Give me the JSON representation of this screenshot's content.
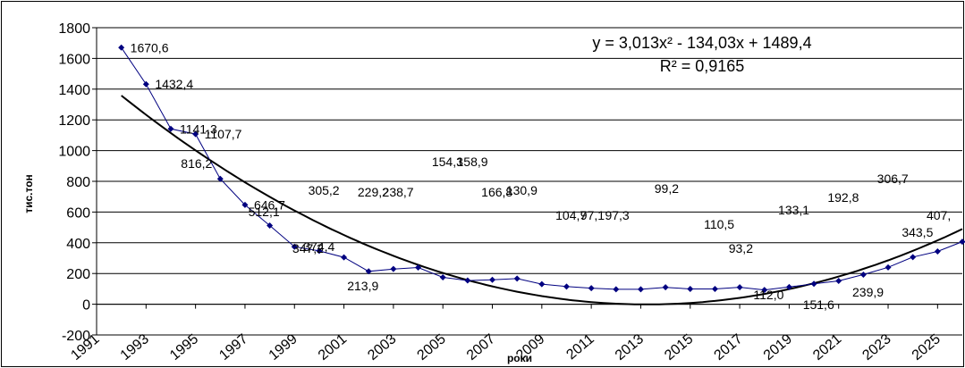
{
  "chart_data": {
    "type": "line",
    "xlabel": "роки",
    "ylabel": "тис.тон",
    "ylim": [
      -200,
      1800
    ],
    "yticks": [
      "-200",
      "0",
      "200",
      "400",
      "600",
      "800",
      "1000",
      "1200",
      "1400",
      "1600",
      "1800"
    ],
    "xlim": [
      1991,
      2026
    ],
    "xticks": [
      "1991",
      "1993",
      "1995",
      "1997",
      "1999",
      "2001",
      "2003",
      "2005",
      "2007",
      "2009",
      "2011",
      "2013",
      "2015",
      "2017",
      "2019",
      "2021",
      "2023",
      "2025"
    ],
    "grid": true,
    "legend": "none",
    "series": [
      {
        "color": "#000080",
        "x": [
          1992,
          1993,
          1994,
          1995,
          1996,
          1997,
          1998,
          1999,
          2000,
          2001,
          2002,
          2003,
          2004,
          2005,
          2006,
          2007,
          2008,
          2009,
          2010,
          2011,
          2012,
          2013,
          2014,
          2015,
          2016,
          2017,
          2018,
          2019,
          2020,
          2021,
          2022,
          2023,
          2024,
          2025,
          2026
        ],
        "values": [
          1670.6,
          1432.4,
          1141.3,
          1107.7,
          816.2,
          646.7,
          512.1,
          374.4,
          347.2,
          305.2,
          213.9,
          229.2,
          238.7,
          175.0,
          154.3,
          158.9,
          166.8,
          130.9,
          115.0,
          104.7,
          97.1,
          97.3,
          110.0,
          99.2,
          99.2,
          110.5,
          93.2,
          112.0,
          133.1,
          151.6,
          192.8,
          239.9,
          306.7,
          343.5,
          407.0
        ],
        "labels": [
          "1670,6",
          "1432,4",
          "1141,3",
          "1107,7",
          "816,2",
          "646,7",
          "512,1",
          "374,4",
          "347,2",
          "305,2",
          "213,9",
          "229,2",
          "238,7",
          "",
          "154,3",
          "158,9",
          "166,8",
          "130,9",
          "",
          "104,7",
          "97,1",
          "97,3",
          "",
          "99,2",
          "",
          "110,5",
          "93,2",
          "112,0",
          "133,1",
          "151,6",
          "192,8",
          "239,9",
          "306,7",
          "343,5",
          "407,"
        ]
      }
    ],
    "trendline": {
      "type": "polynomial",
      "coefficients": [
        3.013,
        -134.03,
        1489.4
      ],
      "x_origin": 1991,
      "color": "#000000",
      "equation_text": "y = 3,013x² - 134,03x + 1489,4",
      "r2_text": "R² = 0,9165"
    }
  }
}
